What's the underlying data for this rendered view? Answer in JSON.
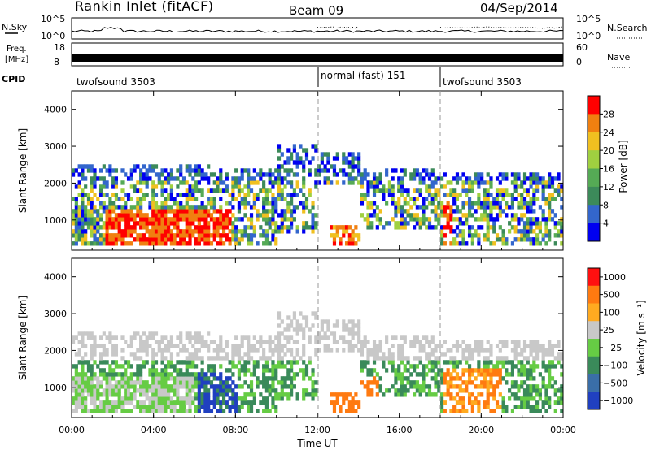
{
  "header": {
    "station": "Rankin Inlet (fitACF)",
    "beam": "Beam 09",
    "date": "04/Sep/2014"
  },
  "top_panels": {
    "nsky_label": "N.Sky",
    "nsky_ticks": [
      "10^5",
      "10^0"
    ],
    "nsearch_label": "N.Search",
    "nsearch_ticks": [
      "10^5",
      "10^0"
    ],
    "freq_label_top": "Freq.",
    "freq_label_unit": "[MHz]",
    "freq_ticks": [
      "18",
      "8"
    ],
    "nave_label": "Nave",
    "nave_ticks": [
      "60",
      "0"
    ],
    "cpid_label": "CPID",
    "cpid_segments": [
      {
        "label": "twofsound 3503",
        "start_hour": 0,
        "end_hour": 12
      },
      {
        "label": "normal (fast) 151",
        "start_hour": 12,
        "end_hour": 18
      },
      {
        "label": "twofsound 3503",
        "start_hour": 18,
        "end_hour": 24
      }
    ]
  },
  "colors": {
    "power_scale": [
      "#0000f0",
      "#3366cc",
      "#3c8a5a",
      "#55aa55",
      "#a0d040",
      "#f0c020",
      "#f08010",
      "#ff0000"
    ],
    "velocity_scale": [
      "#2040c0",
      "#3a6ea8",
      "#3a8a5a",
      "#66cc44",
      "#c8c8c8",
      "#ffaa20",
      "#ff7a10",
      "#ff1010"
    ]
  },
  "chart_data": [
    {
      "type": "heatmap",
      "name": "power",
      "xlabel": "",
      "ylabel": "Slant Range [km]",
      "xlim": [
        0,
        24
      ],
      "ylim": [
        180,
        4500
      ],
      "yticks": [
        "1000",
        "2000",
        "3000",
        "4000"
      ],
      "xticks": [
        "00:00",
        "04:00",
        "08:00",
        "12:00",
        "16:00",
        "20:00",
        "00:00"
      ],
      "colorbar_label": "Power [dB]",
      "colorbar_ticks": [
        "4",
        "8",
        "12",
        "16",
        "20",
        "24",
        "28"
      ]
    },
    {
      "type": "heatmap",
      "name": "velocity",
      "xlabel": "Time UT",
      "ylabel": "Slant Range [km]",
      "xlim": [
        0,
        24
      ],
      "ylim": [
        180,
        4500
      ],
      "yticks": [
        "1000",
        "2000",
        "3000",
        "4000"
      ],
      "xticks": [
        "00:00",
        "04:00",
        "08:00",
        "12:00",
        "16:00",
        "20:00",
        "00:00"
      ],
      "colorbar_label": "Velocity [m s⁻¹]",
      "colorbar_ticks": [
        "1000",
        "500",
        "100",
        "25",
        "−25",
        "−100",
        "−500",
        "−1000"
      ]
    }
  ]
}
